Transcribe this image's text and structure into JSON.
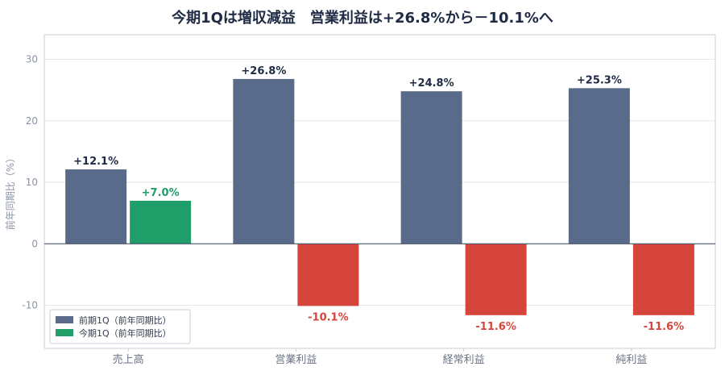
{
  "chart_data": {
    "type": "bar",
    "title": "今期1Qは増収減益　営業利益は+26.8%から－10.1%へ",
    "ylabel": "前年同期比（%）",
    "xlabel": "",
    "categories": [
      "売上高",
      "営業利益",
      "経常利益",
      "純利益"
    ],
    "series": [
      {
        "name": "前期1Q（前年同期比）",
        "values": [
          12.1,
          26.8,
          24.8,
          25.3
        ],
        "labels": [
          "+12.1%",
          "+26.8%",
          "+24.8%",
          "+25.3%"
        ]
      },
      {
        "name": "今期1Q（前年同期比）",
        "values": [
          7.0,
          -10.1,
          -11.6,
          -11.6
        ],
        "labels": [
          "+7.0%",
          "-10.1%",
          "-11.6%",
          "-11.6%"
        ]
      }
    ],
    "ylim": [
      -17,
      34
    ],
    "yticks": [
      -10,
      0,
      10,
      20,
      30
    ],
    "grid": true,
    "legend": "bottom-left",
    "colors": {
      "prev": "#5a6a8a",
      "curr_positive": "#1f9e6a",
      "curr_negative": "#d6453b",
      "prev_label": "#1f2a44",
      "grid": "#e3e6ec",
      "zero_line": "#4a5570",
      "frame": "#c9ced8"
    }
  }
}
